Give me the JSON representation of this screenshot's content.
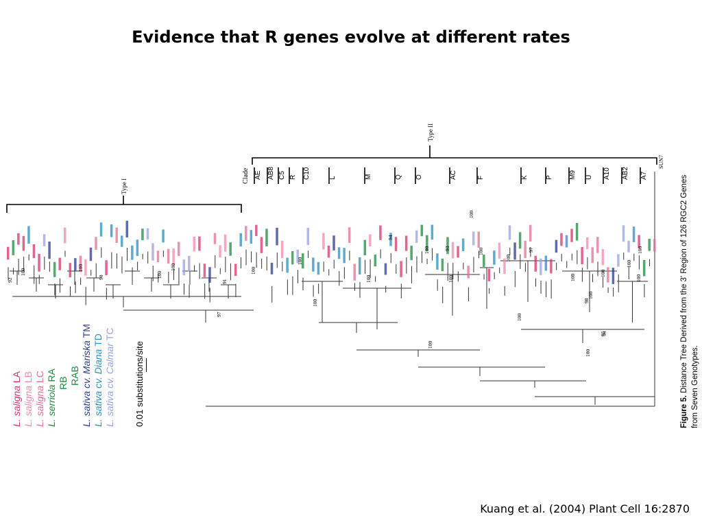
{
  "slide": {
    "title": "Evidence that R genes evolve at different rates",
    "citation": "Kuang et al. (2004) Plant Cell 16:2870"
  },
  "figure": {
    "type_labels": {
      "type1": "Type I",
      "type2": "Type II"
    },
    "outgroup": "SUN7",
    "clade_header": "Clade",
    "clades": [
      "AE",
      "AB8",
      "C5",
      "R",
      "C10",
      "L",
      "M",
      "Q",
      "O",
      "AC",
      "F",
      "K",
      "P",
      "M9",
      "U",
      "A10",
      "AB2",
      "A7"
    ],
    "bootstrap": [
      "92",
      "100",
      "90",
      "100",
      "100",
      "100",
      "91",
      "97",
      "100",
      "100",
      "100",
      "100",
      "94",
      "100",
      "100",
      "93",
      "100",
      "100",
      "100",
      "100",
      "100",
      "97",
      "100",
      "100",
      "96",
      "98",
      "100",
      "100",
      "100",
      "100",
      "95",
      "100"
    ],
    "caption": {
      "label": "Figure 5.",
      "line1": "Distance Tree Derived from the 3' Region of 126 RGC2 Genes",
      "line2": "from Seven Genotypes."
    },
    "legend": [
      {
        "species": "L. saligna",
        "code": "LA",
        "color": "#d6336c"
      },
      {
        "species": "L. saligna",
        "code": "LB",
        "color": "#f08aa8"
      },
      {
        "species": "L. saligna",
        "code": "LC",
        "color": "#e07090"
      },
      {
        "species": "L. serriola",
        "code": "RA",
        "color": "#1e8a3c"
      },
      {
        "species": "",
        "code": "RB",
        "color": "#1e8a3c"
      },
      {
        "species": "",
        "code": "RAB",
        "color": "#1e8a3c"
      },
      {
        "species": "L. sativa cv. Mariska",
        "code": "TM",
        "color": "#2b3a8c"
      },
      {
        "species": "L. sativa cv. Diana",
        "code": "TD",
        "color": "#2a8fc0"
      },
      {
        "species": "L. sativa cv. Calmar",
        "code": "TC",
        "color": "#9aa0e0"
      }
    ],
    "scale_label": "0.01 substitutions/site"
  }
}
